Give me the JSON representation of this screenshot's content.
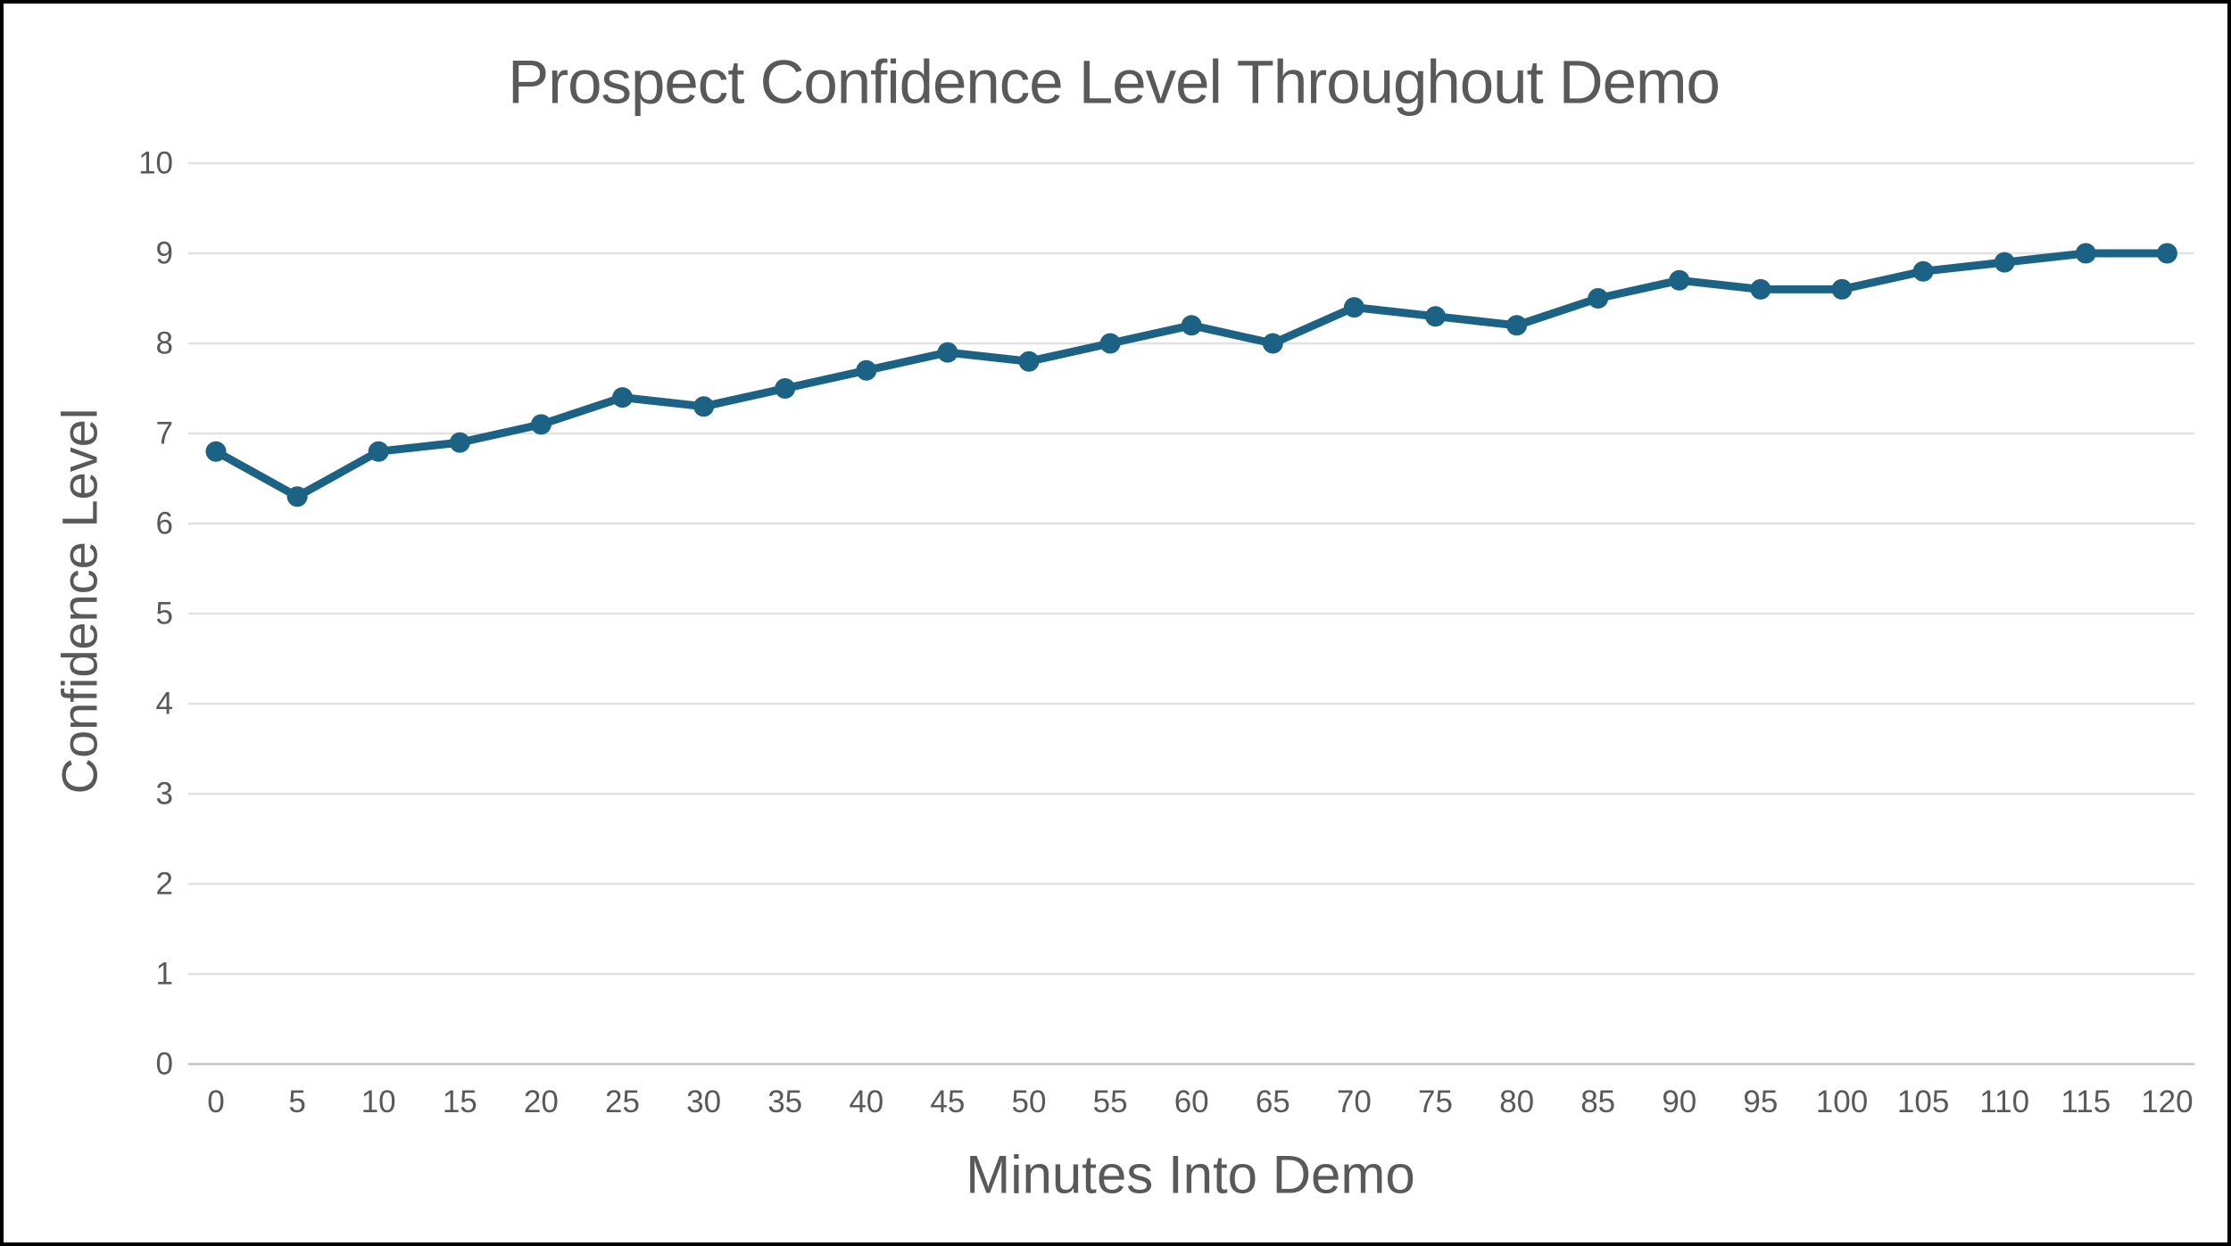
{
  "window": {
    "background": "#ffffff",
    "border_color": "#000000"
  },
  "chart_data": {
    "type": "line",
    "title": "Prospect Confidence Level Throughout Demo",
    "xlabel": "Minutes Into Demo",
    "ylabel": "Confidence Level",
    "categories": [
      0,
      5,
      10,
      15,
      20,
      25,
      30,
      35,
      40,
      45,
      50,
      55,
      60,
      65,
      70,
      75,
      80,
      85,
      90,
      95,
      100,
      105,
      110,
      115,
      120
    ],
    "values": [
      6.8,
      6.3,
      6.8,
      6.9,
      7.1,
      7.4,
      7.3,
      7.5,
      7.7,
      7.9,
      7.8,
      8.0,
      8.2,
      8.0,
      8.4,
      8.3,
      8.2,
      8.5,
      8.7,
      8.6,
      8.6,
      8.8,
      8.9,
      9.0,
      9.0
    ],
    "yticks": [
      0,
      1,
      2,
      3,
      4,
      5,
      6,
      7,
      8,
      9,
      10
    ],
    "ylim": [
      0,
      10
    ],
    "grid": "horizontal",
    "legend": "none",
    "markers": true,
    "colors": {
      "series": "#1b6284",
      "text": "#595959",
      "gridline": "#e1e1e1",
      "axis_line": "#c4c4c4"
    }
  }
}
